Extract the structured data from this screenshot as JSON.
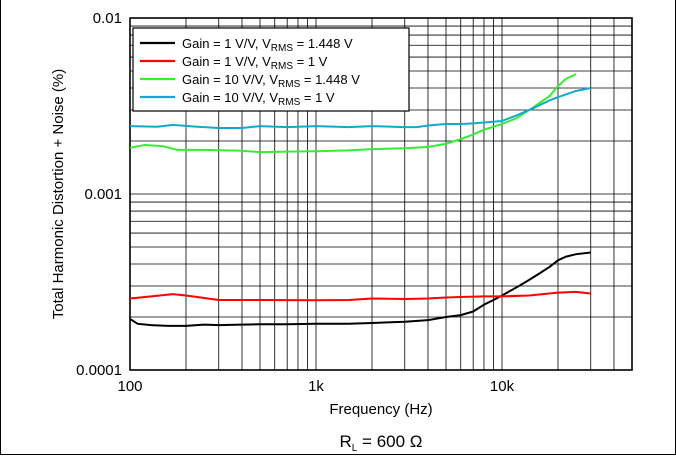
{
  "chart_data": {
    "type": "line",
    "xlabel": "Frequency (Hz)",
    "ylabel": "Total Harmonic Distortion + Noise (%)",
    "xscale": "log",
    "yscale": "log",
    "xlim": [
      100,
      50000
    ],
    "ylim": [
      0.0001,
      0.01
    ],
    "grid": true,
    "legend_position": "top-left",
    "x_tick_labels": [
      {
        "value": 100,
        "label": "100"
      },
      {
        "value": 1000,
        "label": "1k"
      },
      {
        "value": 10000,
        "label": "10k"
      }
    ],
    "y_tick_labels": [
      {
        "value": 0.0001,
        "label": "0.0001"
      },
      {
        "value": 0.001,
        "label": "0.001"
      },
      {
        "value": 0.01,
        "label": "0.01"
      }
    ],
    "annotation": {
      "main": "R",
      "sub": "L",
      "rest": " = 600 Ω"
    },
    "series": [
      {
        "legend_pre": "Gain =  1 V/V, V",
        "legend_sub": "RMS",
        "legend_post": " = 1.448 V",
        "color": "#000000",
        "points": [
          [
            100,
            0.000195
          ],
          [
            110,
            0.000183
          ],
          [
            130,
            0.00018
          ],
          [
            160,
            0.000178
          ],
          [
            200,
            0.000178
          ],
          [
            250,
            0.000181
          ],
          [
            300,
            0.00018
          ],
          [
            400,
            0.000181
          ],
          [
            500,
            0.000182
          ],
          [
            700,
            0.000182
          ],
          [
            1000,
            0.000183
          ],
          [
            1500,
            0.000183
          ],
          [
            2000,
            0.000185
          ],
          [
            3000,
            0.000188
          ],
          [
            4000,
            0.000192
          ],
          [
            5000,
            0.0002
          ],
          [
            6000,
            0.000205
          ],
          [
            7000,
            0.000215
          ],
          [
            8000,
            0.000235
          ],
          [
            9000,
            0.00025
          ],
          [
            10000,
            0.000265
          ],
          [
            12000,
            0.000295
          ],
          [
            14000,
            0.000325
          ],
          [
            16000,
            0.000355
          ],
          [
            18000,
            0.000385
          ],
          [
            20000,
            0.00042
          ],
          [
            22000,
            0.00044
          ],
          [
            25000,
            0.000455
          ],
          [
            30000,
            0.000465
          ]
        ]
      },
      {
        "legend_pre": "Gain =  1 V/V, V",
        "legend_sub": "RMS",
        "legend_post": " = 1 V",
        "color": "#ff0000",
        "points": [
          [
            100,
            0.000255
          ],
          [
            130,
            0.000262
          ],
          [
            170,
            0.00027
          ],
          [
            200,
            0.000265
          ],
          [
            300,
            0.00025
          ],
          [
            500,
            0.00025
          ],
          [
            1000,
            0.000249
          ],
          [
            1500,
            0.00025
          ],
          [
            2000,
            0.000255
          ],
          [
            3000,
            0.000253
          ],
          [
            4000,
            0.000255
          ],
          [
            5000,
            0.000258
          ],
          [
            6000,
            0.00026
          ],
          [
            8000,
            0.000262
          ],
          [
            10000,
            0.000262
          ],
          [
            14000,
            0.000265
          ],
          [
            20000,
            0.000275
          ],
          [
            25000,
            0.000278
          ],
          [
            30000,
            0.000272
          ]
        ]
      },
      {
        "legend_pre": "Gain = 10 V/V, V",
        "legend_sub": "RMS",
        "legend_post": " = 1.448 V",
        "color": "#33ee33",
        "points": [
          [
            100,
            0.00183
          ],
          [
            120,
            0.0019
          ],
          [
            150,
            0.00187
          ],
          [
            180,
            0.00178
          ],
          [
            250,
            0.00178
          ],
          [
            400,
            0.00176
          ],
          [
            500,
            0.00173
          ],
          [
            700,
            0.00174
          ],
          [
            1000,
            0.00175
          ],
          [
            1500,
            0.00177
          ],
          [
            2000,
            0.0018
          ],
          [
            3000,
            0.00182
          ],
          [
            4000,
            0.00185
          ],
          [
            5000,
            0.00193
          ],
          [
            6000,
            0.00205
          ],
          [
            7000,
            0.00218
          ],
          [
            8000,
            0.00232
          ],
          [
            10000,
            0.0025
          ],
          [
            12000,
            0.0027
          ],
          [
            14000,
            0.003
          ],
          [
            16000,
            0.0033
          ],
          [
            18000,
            0.0036
          ],
          [
            20000,
            0.0041
          ],
          [
            22000,
            0.0045
          ],
          [
            25000,
            0.0048
          ]
        ]
      },
      {
        "legend_pre": "Gain = 10 V/V, V",
        "legend_sub": "RMS",
        "legend_post": " = 1 V",
        "color": "#11aacc",
        "points": [
          [
            100,
            0.00243
          ],
          [
            140,
            0.00241
          ],
          [
            170,
            0.00247
          ],
          [
            220,
            0.00242
          ],
          [
            300,
            0.00237
          ],
          [
            400,
            0.00237
          ],
          [
            500,
            0.00243
          ],
          [
            700,
            0.0024
          ],
          [
            1000,
            0.00243
          ],
          [
            1500,
            0.0024
          ],
          [
            2000,
            0.00243
          ],
          [
            3000,
            0.0024
          ],
          [
            3500,
            0.0024
          ],
          [
            4000,
            0.00245
          ],
          [
            5000,
            0.0025
          ],
          [
            6000,
            0.0025
          ],
          [
            7000,
            0.00252
          ],
          [
            8000,
            0.00255
          ],
          [
            10000,
            0.0026
          ],
          [
            12000,
            0.0028
          ],
          [
            15000,
            0.0031
          ],
          [
            18000,
            0.0034
          ],
          [
            20000,
            0.00355
          ],
          [
            25000,
            0.00385
          ],
          [
            30000,
            0.004
          ]
        ]
      }
    ]
  }
}
